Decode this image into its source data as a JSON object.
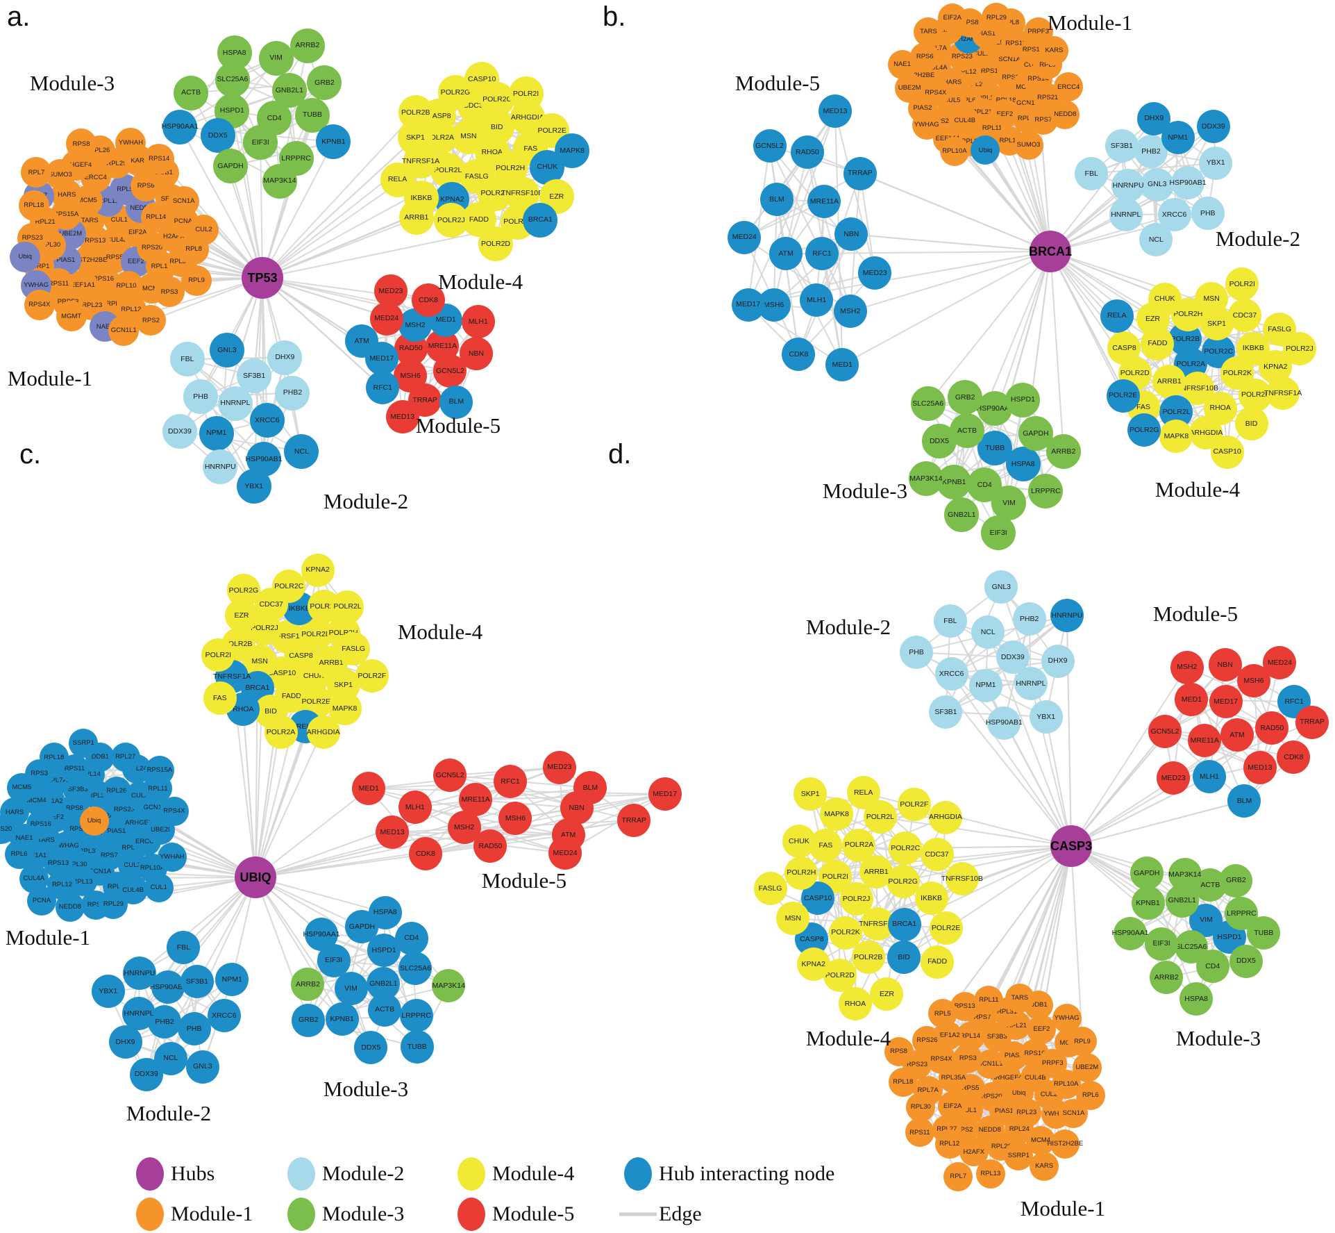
{
  "_encoding": "node name prefixes: * = hub interacting node (blue), ^ = hub interacting node (slate variant), ~ = Module-1 colored node inside another module, + = Module-3 colored node inside another module",
  "colors": {
    "hub": "#A73E99",
    "module1": "#F6942C",
    "module2": "#A6DAEA",
    "module3": "#7CBE4B",
    "module4": "#F1E933",
    "module5": "#E83C35",
    "hub_interacting": "#1E8EC9",
    "hub_interacting_alt": "#7B85C4",
    "edge": "#D6D6D6"
  },
  "panels": [
    {
      "id": "a",
      "letter": "a.",
      "hub": {
        "label": "TP53"
      },
      "modules": [
        {
          "id": "m1",
          "label": "Module-1",
          "color": "module1",
          "nodes": [
            "CUL4B",
            "RPS13",
            "CUL1",
            "RPS5",
            "TARS",
            "EIF2A",
            "HIST2H2BE",
            "^RPL11",
            "^EEF2",
            "^UBE2M",
            "^NEDD8",
            "RPS16",
            "MCM5",
            "RPS20",
            "^PIAS1",
            "^RPL5",
            "RPL10A",
            "RPS15A",
            "RPL14",
            "EEF1A1",
            "ERCC4",
            "RPL13",
            "RPL30",
            "RPS6",
            "RPL6",
            "HARS",
            "H2AFX",
            "RPS11",
            "RPL29",
            "MCM4",
            "RPL21",
            "SF3B3",
            "RPL23",
            "ARHGEF4",
            "RPL35A",
            "SSRP1",
            "KARS",
            "RPL12",
            "^RPS7",
            "PCNA",
            "PRPF3",
            "RPL26",
            "RPS3",
            "RPS23",
            "DDB1",
            "^NAE1",
            "SUMO3",
            "RPL8",
            "^YWHAG",
            "YWHAH",
            "RPS2",
            "RPL18",
            "SCN1A",
            "MGMT",
            "RPS8",
            "RPL9",
            "^Ubiq",
            "RPS14",
            "GCN1L1",
            "RPL7",
            "CUL2",
            "RPS4X"
          ]
        },
        {
          "id": "m2",
          "label": "Module-2",
          "color": "module2",
          "nodes": [
            "HNRNPL",
            "*XRCC6",
            "*NPM1",
            "SF3B1",
            "*HSP90AB1",
            "PHB",
            "PHB2",
            "HNRNPU",
            "*GNL3",
            "*NCL",
            "DDX39",
            "DHX9",
            "*YBX1",
            "FBL"
          ]
        },
        {
          "id": "m3",
          "label": "Module-3",
          "color": "module3",
          "nodes": [
            "CD4",
            "HSPD1",
            "GNB2L1",
            "EIF3I",
            "SLC25A6",
            "TUBB",
            "*DDX5",
            "VIM",
            "LRPPRC",
            "ACTB",
            "GRB2",
            "GAPDH",
            "HSPA8",
            "*KPNB1",
            "*HSP90AA1",
            "ARRB2",
            "MAP3K14"
          ]
        },
        {
          "id": "m4",
          "label": "Module-4",
          "color": "module4",
          "nodes": [
            "RHOA",
            "FASLG",
            "MSN",
            "POLR2H",
            "POLR2L",
            "BID",
            "POLR2F",
            "POLR2A",
            "FAS",
            "*KPNA2",
            "CDC37",
            "TNFRSF10B",
            "TNFRSF1A",
            "ARHGDIA",
            "FADD",
            "CASP8",
            "*CHUK",
            "IKBKB",
            "POLR2C",
            "POLR2K",
            "SKP1",
            "POLR2E",
            "POLR2J",
            "POLR2G",
            "EZR",
            "RELA",
            "POLR2I",
            "POLR2D",
            "POLR2B",
            "*MAPK8",
            "ARRB1",
            "CASP10",
            "*BRCA1"
          ]
        },
        {
          "id": "m5",
          "label": "Module-5",
          "color": "module5",
          "nodes": [
            "RAD50",
            "MRE11A",
            "MSH6",
            "*MSH2",
            "GCN5L2",
            "*MED17",
            "*MED1",
            "TRRAP",
            "MED24",
            "NBN",
            "*RFC1",
            "CDK8",
            "*BLM",
            "*ATM",
            "MLH1",
            "MED13",
            "MED23"
          ]
        }
      ]
    },
    {
      "id": "b",
      "letter": "b.",
      "hub": {
        "label": "BRCA1"
      },
      "modules": [
        {
          "id": "m1",
          "label": "Module-1",
          "color": "module1",
          "nodes": [
            "RPL23",
            "RPS13",
            "RPL35A",
            "RPL12",
            "RPS3",
            "RPL6",
            "CUL1",
            "RPL18",
            "HARS",
            "SCN1A",
            "RPL21",
            "RPS23",
            "MCM5",
            "CUL5",
            "RPL5",
            "EEF2",
            "CUL4A",
            "CUL3",
            "CUL4B",
            "*H2AFX",
            "GCN1L1",
            "RPS4X",
            "RPS11",
            "RPL11",
            "RPL7A",
            "RPS14",
            "RPS2",
            "PIAS1",
            "RPL14",
            "HIST2H2BE",
            "RPS15A",
            "RPL30",
            "EMG1",
            "RPS21",
            "PIAS2",
            "RPL8",
            "RPL13",
            "RPS6",
            "RPL9",
            "EEF1A1",
            "RPS8",
            "RPS7",
            "UBE2M",
            "PRPF3",
            "*Ubiq",
            "TARS",
            "ERCC4",
            "YWHAG",
            "RPL29",
            "SUMO3",
            "NAE1",
            "KARS",
            "RPL10A",
            "EIF2A",
            "NEDD8"
          ]
        },
        {
          "id": "m2",
          "label": "Module-2",
          "color": "module2",
          "nodes": [
            "GNL3",
            "PHB2",
            "HSP90AB1",
            "HNRNPU",
            "*NPM1",
            "XRCC6",
            "SF3B1",
            "YBX1",
            "HNRNPL",
            "*DHX9",
            "PHB",
            "FBL",
            "*DDX39",
            "NCL"
          ]
        },
        {
          "id": "m3",
          "label": "Module-3",
          "color": "module3",
          "nodes": [
            "*TUBB",
            "CD4",
            "ACTB",
            "*HSPA8",
            "KPNB1",
            "HSP90AA1",
            "VIM",
            "DDX5",
            "GAPDH",
            "GNB2L1",
            "GRB2",
            "LRPPRC",
            "MAP3K14",
            "HSPD1",
            "EIF3I",
            "SLC25A6",
            "ARRB2"
          ]
        },
        {
          "id": "m4",
          "label": "Module-4",
          "color": "module4",
          "nodes": [
            "*POLR2A",
            "*POLR2C",
            "TNFRSF10B",
            "*POLR2B",
            "POLR2K",
            "ARRB1",
            "SKP1",
            "RHOA",
            "FADD",
            "IKBKB",
            "*POLR2L",
            "POLR2H",
            "POLR2F",
            "POLR2D",
            "CDC37",
            "ARHGDIA",
            "EZR",
            "KPNA2",
            "FAS",
            "MSN",
            "BID",
            "CASP8",
            "FASLG",
            "MAPK8",
            "CHUK",
            "TNFRSF1A",
            "*POLR2E",
            "POLR2I",
            "CASP10",
            "*RELA",
            "POLR2J",
            "*POLR2G"
          ]
        },
        {
          "id": "m5",
          "label": "Module-5",
          "color": "hub_interacting",
          "nodes": [
            "RFC1",
            "ATM",
            "MRE11A",
            "MLH1",
            "BLM",
            "NBN",
            "MSH6",
            "RAD50",
            "MSH2",
            "MED24",
            "TRRAP",
            "CDK8",
            "GCN5L2",
            "MED23",
            "MED17",
            "MED13",
            "MED1"
          ]
        }
      ]
    },
    {
      "id": "c",
      "letter": "c.",
      "hub": {
        "label": "UBIQ"
      },
      "modules": [
        {
          "id": "m1",
          "label": "Module-1",
          "color": "hub_interacting",
          "nodes": [
            "RPL7",
            "RPS6",
            "EIF2A",
            "RPL35A",
            "RPS8",
            "PIAS1",
            "YWHAG",
            "RPL31",
            "RPS7",
            "EEF2",
            "RPS23",
            "RPL30",
            "SF3B3",
            "RPL23",
            "TARS",
            "RPL26",
            "SCN1A",
            "EEF1A2",
            "ARHGEF4",
            "RPS13",
            "RPL14",
            "CUL2",
            "RPS16",
            "CUL5",
            "RPL13",
            "RPL7A",
            "ERCC4",
            "EEF1A1",
            "~Ubiq",
            "RPL21",
            "MCM4",
            "GCN1L1",
            "RPL12",
            "RPS11",
            "RPL10A",
            "NAE1",
            "RPL24",
            "RPS2",
            "RPS3",
            "UBE2I",
            "CUL4A",
            "DDB1",
            "CUL4B",
            "HARS",
            "RPL11",
            "NEDD8",
            "RPL18",
            "YWHAH",
            "RPL6",
            "RPL27",
            "RPL29",
            "MCM5",
            "RPS4X",
            "PCNA",
            "SSRP1",
            "CUL1",
            "RPS20",
            "RPS15A"
          ]
        },
        {
          "id": "m2",
          "label": "Module-2",
          "color": "hub_interacting",
          "nodes": [
            "PHB2",
            "HSP90AB1",
            "PHB",
            "HNRNPL",
            "SF3B1",
            "NCL",
            "HNRNPU",
            "XRCC6",
            "DHX9",
            "FBL",
            "GNL3",
            "YBX1",
            "NPM1",
            "DDX39"
          ]
        },
        {
          "id": "m3",
          "label": "Module-3",
          "color": "hub_interacting",
          "nodes": [
            "GNB2L1",
            "VIM",
            "HSPD1",
            "ACTB",
            "EIF3I",
            "SLC25A6",
            "KPNB1",
            "GAPDH",
            "LRPPRC",
            "+ARRB2",
            "CD4",
            "DDX5",
            "HSP90AA1",
            "+MAP3K14",
            "GRB2",
            "HSPA8",
            "TUBB"
          ]
        },
        {
          "id": "m4",
          "label": "Module-4",
          "color": "module4",
          "nodes": [
            "CASP8",
            "CASP10",
            "TNFRSF10B",
            "CHUK",
            "MSN",
            "POLR2D",
            "FADD",
            "POLR2J",
            "ARRB1",
            "*BRCA1",
            "*IKBKB",
            "POLR2E",
            "POLR2B",
            "POLR2H",
            "BID",
            "CDC37",
            "SKP1",
            "*TNFRSF1A",
            "POLR2K",
            "*RELA",
            "EZR",
            "FASLG",
            "*RHOA",
            "POLR2C",
            "MAPK8",
            "POLR2I",
            "POLR2L",
            "POLR2A",
            "POLR2G",
            "POLR2F",
            "FAS",
            "KPNA2",
            "ARHGDIA"
          ]
        },
        {
          "id": "m5",
          "label": "Module-5",
          "color": "module5",
          "nodes": [
            "MSH6",
            "MRE11A",
            "NBN",
            "MSH2",
            "RFC1",
            "ATM",
            "MLH1",
            "BLM",
            "RAD50",
            "GCN5L2",
            "TRRAP",
            "MED13",
            "MED23",
            "MED24",
            "MED1",
            "MED17",
            "CDK8"
          ]
        }
      ]
    },
    {
      "id": "d",
      "letter": "d.",
      "hub": {
        "label": "CASP3"
      },
      "modules": [
        {
          "id": "m1",
          "label": "Module-1",
          "color": "module1",
          "nodes": [
            "ARHGEF4",
            "RPS20",
            "GCN1L1",
            "Ubiq",
            "RPS5",
            "PIAS2",
            "PIAS1",
            "RPS3",
            "CUL4B",
            "CUL1",
            "SF3B3",
            "RPL23",
            "RPL35A",
            "RPS16",
            "NEDD8",
            "RPL14",
            "CUL2",
            "EIF2A",
            "RPL21",
            "RPL24",
            "RPS4X",
            "PRPF3",
            "RPS2",
            "RPS7",
            "YWHAH",
            "RPL7A",
            "EEF2",
            "RPL29",
            "EEF1A2",
            "RPL10A",
            "RPL27",
            "RPL31",
            "MCM4",
            "RPS23",
            "MCM5",
            "H2AFX",
            "RPS13",
            "SCN1A",
            "RPL30",
            "DDB1",
            "SSRP1",
            "RPS26",
            "UBE2M",
            "RPL12",
            "RPL11",
            "HIST2H2BE",
            "RPL18",
            "YWHAG",
            "RPL13",
            "RPL5",
            "RPL6",
            "RPS11",
            "TARS",
            "KARS",
            "RPS8",
            "RPL9",
            "RPL7"
          ]
        },
        {
          "id": "m2",
          "label": "Module-2",
          "color": "module2",
          "nodes": [
            "DDX39",
            "NPM1",
            "NCL",
            "HNRNPL",
            "XRCC6",
            "PHB2",
            "HSP90AB1",
            "FBL",
            "DHX9",
            "SF3B1",
            "GNL3",
            "YBX1",
            "PHB",
            "*HNRNPU"
          ]
        },
        {
          "id": "m3",
          "label": "Module-3",
          "color": "module3",
          "nodes": [
            "*VIM",
            "SLC25A6",
            "GNB2L1",
            "*HSPD1",
            "EIF3I",
            "ACTB",
            "CD4",
            "KPNB1",
            "LRPPRC",
            "ARRB2",
            "MAP3K14",
            "DDX5",
            "HSP90AA1",
            "GRB2",
            "HSPA8",
            "GAPDH",
            "TUBB"
          ]
        },
        {
          "id": "m4",
          "label": "Module-4",
          "color": "module4",
          "nodes": [
            "POLR2J",
            "ARRB1",
            "TNFRSF1A",
            "POLR2I",
            "POLR2G",
            "POLR2K",
            "POLR2A",
            "*BRCA1",
            "*CASP10",
            "POLR2C",
            "POLR2B",
            "FAS",
            "IKBKB",
            "*CASP8",
            "POLR2L",
            "*BID",
            "POLR2H",
            "CDC37",
            "POLR2D",
            "MAPK8",
            "POLR2E",
            "MSN",
            "POLR2F",
            "EZR",
            "CHUK",
            "TNFRSF10B",
            "KPNA2",
            "RELA",
            "FADD",
            "FASLG",
            "ARHGDIA",
            "RHOA",
            "SKP1"
          ]
        },
        {
          "id": "m5",
          "label": "Module-5",
          "color": "module5",
          "nodes": [
            "ATM",
            "MED17",
            "RAD50",
            "MRE11A",
            "MSH6",
            "MED13",
            "MED1",
            "*RFC1",
            "*MLH1",
            "NBN",
            "CDK8",
            "GCN5L2",
            "MED24",
            "*BLM",
            "MSH2",
            "TRRAP",
            "MED23"
          ]
        }
      ]
    }
  ],
  "legend": {
    "items": [
      {
        "label": "Hubs",
        "swatch": "hub",
        "shape": "ellipse"
      },
      {
        "label": "Module-1",
        "swatch": "module1",
        "shape": "ellipse"
      },
      {
        "label": "Module-2",
        "swatch": "module2",
        "shape": "ellipse"
      },
      {
        "label": "Module-3",
        "swatch": "module3",
        "shape": "ellipse"
      },
      {
        "label": "Module-4",
        "swatch": "module4",
        "shape": "ellipse"
      },
      {
        "label": "Module-5",
        "swatch": "module5",
        "shape": "ellipse"
      },
      {
        "label": "Hub interacting node",
        "swatch": "hub_interacting",
        "shape": "ellipse"
      },
      {
        "label": "Edge",
        "swatch": "edge",
        "shape": "line"
      }
    ]
  }
}
